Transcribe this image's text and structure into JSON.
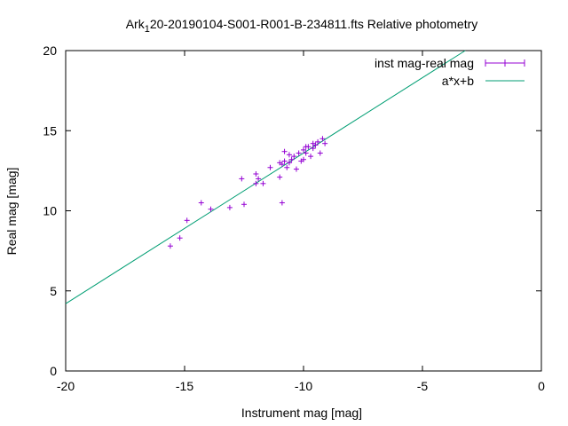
{
  "chart_data": {
    "type": "scatter",
    "title_main": "Ark",
    "title_sub": "1",
    "title_rest": "20-20190104-S001-R001-B-234811.fts Relative photometry",
    "xlabel": "Instrument mag [mag]",
    "ylabel": "Real mag [mag]",
    "xlim": [
      -20,
      0
    ],
    "ylim": [
      0,
      20
    ],
    "xticks": [
      -20,
      -15,
      -10,
      -5,
      0
    ],
    "yticks": [
      0,
      5,
      10,
      15,
      20
    ],
    "xtick_labels": [
      "-20",
      "-15",
      "-10",
      "-5",
      "0"
    ],
    "ytick_labels": [
      "0",
      "5",
      "10",
      "15",
      "20"
    ],
    "grid": false,
    "legend_position": "top-right",
    "colors": {
      "points": "#9400d3",
      "fit": "#009e73"
    },
    "series": [
      {
        "name": "inst mag-real mag",
        "type": "points",
        "points": [
          [
            -15.6,
            7.8
          ],
          [
            -15.2,
            8.3
          ],
          [
            -14.9,
            9.4
          ],
          [
            -14.3,
            10.5
          ],
          [
            -13.9,
            10.1
          ],
          [
            -13.1,
            10.2
          ],
          [
            -12.5,
            10.4
          ],
          [
            -12.6,
            12.0
          ],
          [
            -12.0,
            12.3
          ],
          [
            -11.9,
            12.0
          ],
          [
            -12.0,
            11.7
          ],
          [
            -11.7,
            11.7
          ],
          [
            -11.4,
            12.7
          ],
          [
            -11.0,
            12.1
          ],
          [
            -10.9,
            10.5
          ],
          [
            -11.0,
            13.0
          ],
          [
            -10.9,
            12.9
          ],
          [
            -10.8,
            13.1
          ],
          [
            -10.7,
            12.7
          ],
          [
            -10.6,
            13.0
          ],
          [
            -10.5,
            13.2
          ],
          [
            -10.8,
            13.7
          ],
          [
            -10.4,
            13.4
          ],
          [
            -10.3,
            12.6
          ],
          [
            -10.2,
            13.6
          ],
          [
            -10.1,
            13.1
          ],
          [
            -10.0,
            13.8
          ],
          [
            -9.9,
            13.6
          ],
          [
            -9.8,
            14.0
          ],
          [
            -9.7,
            13.4
          ],
          [
            -9.6,
            13.9
          ],
          [
            -9.5,
            14.1
          ],
          [
            -9.4,
            14.3
          ],
          [
            -9.3,
            13.6
          ],
          [
            -9.2,
            14.5
          ],
          [
            -9.1,
            14.2
          ],
          [
            -10.6,
            13.5
          ],
          [
            -10.0,
            13.2
          ],
          [
            -9.9,
            14.0
          ],
          [
            -9.6,
            14.2
          ]
        ]
      },
      {
        "name": "a*x+b",
        "type": "line",
        "line": [
          [
            -20,
            4.2
          ],
          [
            -3.2,
            20.0
          ]
        ]
      }
    ]
  }
}
